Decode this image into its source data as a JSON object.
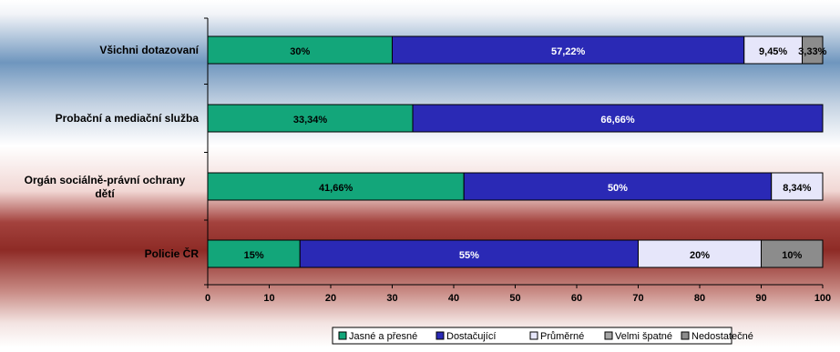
{
  "chart_data": {
    "type": "bar",
    "orientation": "horizontal",
    "stacked": true,
    "categories": [
      "Všichni dotazovaní",
      "Probační a mediační služba",
      "Orgán sociálně-právní ochrany dětí",
      "Policie ČR"
    ],
    "series": [
      {
        "name": "Jasné a přesné",
        "color": "#13A67A",
        "values": [
          30,
          33.34,
          41.66,
          15
        ],
        "labels": [
          "30%",
          "33,34%",
          "41,66%",
          "15%"
        ]
      },
      {
        "name": "Dostačující",
        "color": "#2A29B5",
        "values": [
          57.22,
          66.66,
          50,
          55
        ],
        "labels": [
          "57,22%",
          "66,66%",
          "50%",
          "55%"
        ]
      },
      {
        "name": "Průměrné",
        "color": "#E6E6FA",
        "values": [
          9.45,
          0,
          8.34,
          20
        ],
        "labels": [
          "9,45%",
          "",
          "8,34%",
          "20%"
        ]
      },
      {
        "name": "Velmi špatné",
        "color": "#A6A6A6",
        "values": [
          0,
          0,
          0,
          0
        ],
        "labels": [
          "",
          "",
          "",
          ""
        ]
      },
      {
        "name": "Nedostatečné",
        "color": "#8C8C8C",
        "values": [
          3.33,
          0,
          0,
          10
        ],
        "labels": [
          "3,33%",
          "",
          "",
          "10%"
        ]
      }
    ],
    "xlim": [
      0,
      100
    ],
    "xticks": [
      0,
      10,
      20,
      30,
      40,
      50,
      60,
      70,
      80,
      90,
      100
    ],
    "legend_position": "bottom",
    "grid": false
  }
}
